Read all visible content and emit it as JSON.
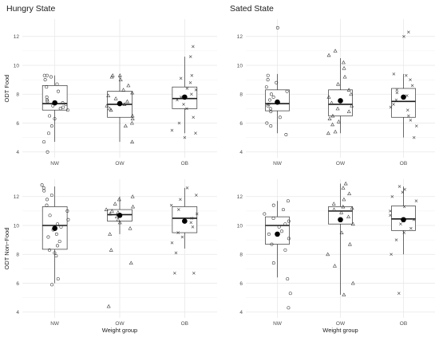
{
  "chart_data": [
    {
      "type": "boxplot",
      "title": "Hungry State",
      "ylabel": "ODT Food",
      "xlabel": "",
      "ylim": [
        3.6,
        13.2
      ],
      "yticks": [
        4,
        6,
        8,
        10,
        12
      ],
      "categories": [
        "NW",
        "OW",
        "OB"
      ],
      "grid": true,
      "series": [
        {
          "category": "NW",
          "marker": "circle",
          "q1": 6.9,
          "median": 7.35,
          "q3": 8.6,
          "whisker_low": 4.7,
          "whisker_high": 9.3,
          "mean": 7.4,
          "points": [
            4.0,
            4.7,
            5.3,
            5.8,
            6.3,
            6.5,
            6.9,
            7.0,
            7.1,
            7.2,
            7.3,
            7.4,
            7.5,
            7.6,
            7.8,
            8.2,
            8.5,
            8.7,
            9.0,
            9.2,
            9.3,
            9.3
          ]
        },
        {
          "category": "OW",
          "marker": "triangle",
          "q1": 6.4,
          "median": 7.3,
          "q3": 8.2,
          "whisker_low": 4.7,
          "whisker_high": 9.3,
          "mean": 7.35,
          "points": [
            4.7,
            5.8,
            6.0,
            6.3,
            6.5,
            6.9,
            7.0,
            7.2,
            7.3,
            7.5,
            7.7,
            7.9,
            8.1,
            8.3,
            8.6,
            9.0,
            9.2,
            9.3,
            9.3
          ]
        },
        {
          "category": "OB",
          "marker": "cross",
          "q1": 7.0,
          "median": 7.7,
          "q3": 8.5,
          "whisker_low": 5.3,
          "whisker_high": 10.6,
          "mean": 7.8,
          "points": [
            5.0,
            5.3,
            5.5,
            6.0,
            6.4,
            7.0,
            7.3,
            7.6,
            7.8,
            8.0,
            8.3,
            8.4,
            8.8,
            9.1,
            9.3,
            10.6,
            11.3
          ]
        }
      ]
    },
    {
      "type": "boxplot",
      "title": "Sated State",
      "ylabel": "",
      "xlabel": "",
      "ylim": [
        3.6,
        13.2
      ],
      "yticks": [
        4,
        6,
        8,
        10,
        12
      ],
      "categories": [
        "NW",
        "OW",
        "OB"
      ],
      "grid": true,
      "series": [
        {
          "category": "NW",
          "marker": "circle",
          "q1": 6.85,
          "median": 7.35,
          "q3": 8.3,
          "whisker_low": 5.3,
          "whisker_high": 9.4,
          "mean": 7.45,
          "points": [
            5.2,
            5.8,
            6.0,
            6.4,
            6.8,
            7.0,
            7.2,
            7.3,
            7.4,
            7.6,
            7.8,
            8.0,
            8.2,
            8.5,
            8.8,
            9.0,
            9.3,
            12.6
          ]
        },
        {
          "category": "OW",
          "marker": "triangle",
          "q1": 6.5,
          "median": 7.3,
          "q3": 8.3,
          "whisker_low": 5.3,
          "whisker_high": 10.5,
          "mean": 7.55,
          "points": [
            5.3,
            5.4,
            5.9,
            6.1,
            6.3,
            6.5,
            6.8,
            7.0,
            7.2,
            7.4,
            7.8,
            8.0,
            8.3,
            8.7,
            9.2,
            9.8,
            10.2,
            10.7,
            11.0
          ]
        },
        {
          "category": "OB",
          "marker": "cross",
          "q1": 6.4,
          "median": 7.5,
          "q3": 8.4,
          "whisker_low": 5.0,
          "whisker_high": 9.4,
          "mean": 7.8,
          "points": [
            5.0,
            5.8,
            6.2,
            6.5,
            6.9,
            7.1,
            7.3,
            7.6,
            7.9,
            8.1,
            8.3,
            8.6,
            9.0,
            9.3,
            9.4,
            12.0,
            12.3
          ]
        }
      ]
    },
    {
      "type": "boxplot",
      "title": "",
      "ylabel": "ODT Non−Food",
      "xlabel": "Weight group",
      "ylim": [
        3.6,
        13.2
      ],
      "yticks": [
        4,
        6,
        8,
        10,
        12
      ],
      "categories": [
        "NW",
        "OW",
        "OB"
      ],
      "grid": true,
      "series": [
        {
          "category": "NW",
          "marker": "circle",
          "q1": 8.35,
          "median": 10.0,
          "q3": 11.3,
          "whisker_low": 6.0,
          "whisker_high": 12.7,
          "mean": 9.8,
          "points": [
            5.9,
            6.3,
            7.9,
            8.1,
            8.3,
            8.6,
            8.9,
            9.2,
            9.4,
            9.7,
            9.9,
            10.1,
            10.4,
            10.7,
            11.0,
            11.4,
            11.8,
            12.1,
            12.4,
            12.6,
            12.8
          ]
        },
        {
          "category": "OW",
          "marker": "triangle",
          "q1": 10.3,
          "median": 10.75,
          "q3": 11.1,
          "whisker_low": 9.4,
          "whisker_high": 12.0,
          "mean": 10.7,
          "points": [
            4.4,
            7.4,
            8.3,
            9.4,
            9.8,
            10.2,
            10.4,
            10.6,
            10.8,
            10.9,
            11.0,
            11.1,
            11.3,
            11.5,
            11.8,
            12.0
          ]
        },
        {
          "category": "OB",
          "marker": "cross",
          "q1": 9.5,
          "median": 10.5,
          "q3": 11.3,
          "whisker_low": 8.4,
          "whisker_high": 12.6,
          "mean": 10.3,
          "points": [
            6.7,
            6.7,
            8.1,
            8.8,
            9.2,
            9.5,
            9.9,
            10.2,
            10.5,
            10.8,
            11.1,
            11.4,
            11.8,
            12.1,
            12.6
          ]
        }
      ]
    },
    {
      "type": "boxplot",
      "title": "",
      "ylabel": "",
      "xlabel": "Weight group",
      "ylim": [
        3.6,
        13.2
      ],
      "yticks": [
        4,
        6,
        8,
        10,
        12
      ],
      "categories": [
        "NW",
        "OW",
        "OB"
      ],
      "grid": true,
      "series": [
        {
          "category": "NW",
          "marker": "circle",
          "q1": 8.7,
          "median": 10.0,
          "q3": 10.6,
          "whisker_low": 6.4,
          "whisker_high": 11.7,
          "mean": 9.4,
          "points": [
            4.3,
            5.3,
            6.3,
            7.4,
            8.3,
            8.7,
            9.1,
            9.4,
            9.6,
            9.9,
            10.1,
            10.3,
            10.5,
            10.8,
            11.1,
            11.4,
            11.7
          ]
        },
        {
          "category": "OW",
          "marker": "triangle",
          "q1": 10.1,
          "median": 11.0,
          "q3": 11.3,
          "whisker_low": 5.2,
          "whisker_high": 12.9,
          "mean": 10.4,
          "points": [
            5.2,
            6.0,
            7.2,
            8.0,
            8.7,
            9.5,
            10.1,
            10.6,
            10.9,
            11.1,
            11.2,
            11.3,
            11.5,
            11.8,
            12.2,
            12.6,
            12.9
          ]
        },
        {
          "category": "OB",
          "marker": "cross",
          "q1": 9.65,
          "median": 10.45,
          "q3": 11.35,
          "whisker_low": 8.0,
          "whisker_high": 12.7,
          "mean": 10.4,
          "points": [
            5.3,
            8.0,
            9.0,
            9.5,
            9.8,
            10.1,
            10.4,
            10.7,
            11.0,
            11.3,
            11.7,
            12.0,
            12.3,
            12.5,
            12.7
          ]
        }
      ]
    }
  ]
}
